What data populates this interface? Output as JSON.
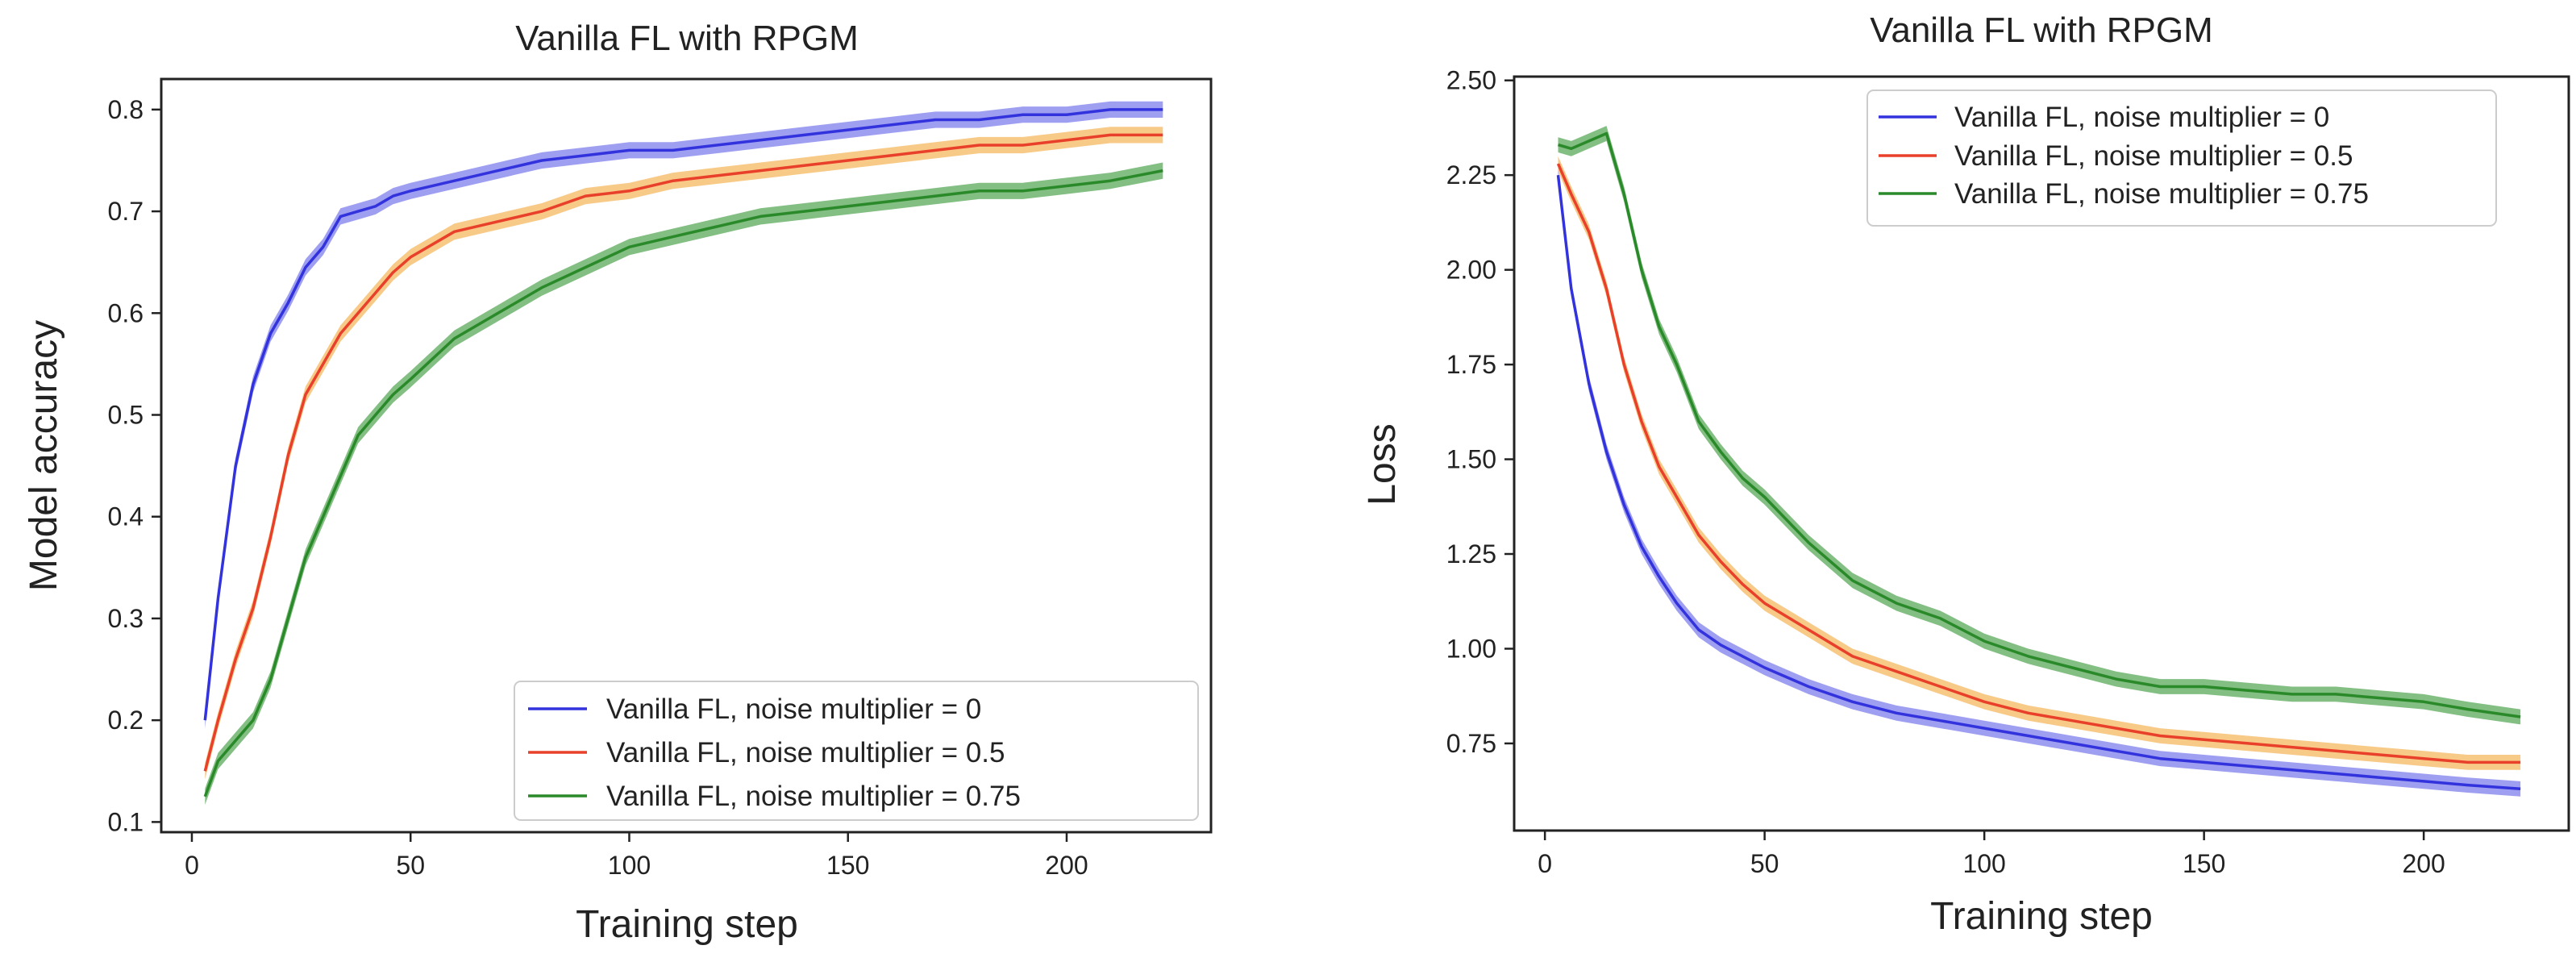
{
  "chart_data": [
    {
      "type": "line",
      "title": "Vanilla FL with RPGM",
      "xlabel": "Training step",
      "ylabel": "Model accuracy",
      "xlim": [
        -7,
        233
      ],
      "ylim": [
        0.09,
        0.83
      ],
      "xticks": [
        0,
        50,
        100,
        150,
        200
      ],
      "yticks": [
        0.1,
        0.2,
        0.3,
        0.4,
        0.5,
        0.6,
        0.7,
        0.8
      ],
      "ytick_labels": [
        "0.1",
        "0.2",
        "0.3",
        "0.4",
        "0.5",
        "0.6",
        "0.7",
        "0.8"
      ],
      "legend_position": "lower-right",
      "band_width": 0.008,
      "series": [
        {
          "name": "Vanilla FL, noise multiplier = 0",
          "color": "#3333dd",
          "band_color": "#7f7fee",
          "x": [
            3,
            6,
            10,
            14,
            18,
            22,
            26,
            30,
            34,
            38,
            42,
            46,
            50,
            60,
            70,
            80,
            90,
            100,
            110,
            120,
            130,
            140,
            150,
            160,
            170,
            180,
            190,
            200,
            210,
            222
          ],
          "y": [
            0.2,
            0.32,
            0.45,
            0.53,
            0.58,
            0.61,
            0.645,
            0.665,
            0.695,
            0.7,
            0.705,
            0.715,
            0.72,
            0.73,
            0.74,
            0.75,
            0.755,
            0.76,
            0.76,
            0.765,
            0.77,
            0.775,
            0.78,
            0.785,
            0.79,
            0.79,
            0.795,
            0.795,
            0.8,
            0.8
          ]
        },
        {
          "name": "Vanilla FL, noise multiplier = 0.5",
          "color": "#e8402a",
          "band_color": "#f5b860",
          "x": [
            3,
            6,
            10,
            14,
            18,
            22,
            26,
            30,
            34,
            38,
            42,
            46,
            50,
            60,
            70,
            80,
            90,
            100,
            110,
            120,
            130,
            140,
            150,
            160,
            170,
            180,
            190,
            200,
            210,
            222
          ],
          "y": [
            0.15,
            0.2,
            0.26,
            0.31,
            0.38,
            0.46,
            0.52,
            0.55,
            0.58,
            0.6,
            0.62,
            0.64,
            0.655,
            0.68,
            0.69,
            0.7,
            0.715,
            0.72,
            0.73,
            0.735,
            0.74,
            0.745,
            0.75,
            0.755,
            0.76,
            0.765,
            0.765,
            0.77,
            0.775,
            0.775
          ]
        },
        {
          "name": "Vanilla FL, noise multiplier = 0.75",
          "color": "#2a8a2a",
          "band_color": "#5aa85a",
          "x": [
            3,
            6,
            10,
            14,
            18,
            22,
            26,
            30,
            34,
            38,
            42,
            46,
            50,
            60,
            70,
            80,
            90,
            100,
            110,
            120,
            130,
            140,
            150,
            160,
            170,
            180,
            190,
            200,
            210,
            222
          ],
          "y": [
            0.125,
            0.16,
            0.18,
            0.2,
            0.24,
            0.3,
            0.36,
            0.4,
            0.44,
            0.48,
            0.5,
            0.52,
            0.535,
            0.575,
            0.6,
            0.625,
            0.645,
            0.665,
            0.675,
            0.685,
            0.695,
            0.7,
            0.705,
            0.71,
            0.715,
            0.72,
            0.72,
            0.725,
            0.73,
            0.74
          ]
        }
      ]
    },
    {
      "type": "line",
      "title": "Vanilla FL with RPGM",
      "xlabel": "Training step",
      "ylabel": "Loss",
      "xlim": [
        -7,
        233
      ],
      "ylim": [
        0.52,
        2.51
      ],
      "xticks": [
        0,
        50,
        100,
        150,
        200
      ],
      "yticks": [
        0.75,
        1.0,
        1.25,
        1.5,
        1.75,
        2.0,
        2.25,
        2.5
      ],
      "ytick_labels": [
        "0.75",
        "1.00",
        "1.25",
        "1.50",
        "1.75",
        "2.00",
        "2.25",
        "2.50"
      ],
      "legend_position": "upper-right",
      "band_width": 0.02,
      "series": [
        {
          "name": "Vanilla FL, noise multiplier = 0",
          "color": "#3333dd",
          "band_color": "#7f7fee",
          "x": [
            3,
            6,
            10,
            14,
            18,
            22,
            26,
            30,
            35,
            40,
            45,
            50,
            60,
            70,
            80,
            90,
            100,
            110,
            120,
            130,
            140,
            150,
            160,
            170,
            180,
            190,
            200,
            210,
            222
          ],
          "y": [
            2.25,
            1.95,
            1.7,
            1.52,
            1.38,
            1.27,
            1.19,
            1.12,
            1.05,
            1.01,
            0.98,
            0.95,
            0.9,
            0.86,
            0.83,
            0.81,
            0.79,
            0.77,
            0.75,
            0.73,
            0.71,
            0.7,
            0.69,
            0.68,
            0.67,
            0.66,
            0.65,
            0.64,
            0.63
          ]
        },
        {
          "name": "Vanilla FL, noise multiplier = 0.5",
          "color": "#e8402a",
          "band_color": "#f5b860",
          "x": [
            3,
            6,
            10,
            14,
            18,
            22,
            26,
            30,
            35,
            40,
            45,
            50,
            60,
            70,
            80,
            90,
            100,
            110,
            120,
            130,
            140,
            150,
            160,
            170,
            180,
            190,
            200,
            210,
            222
          ],
          "y": [
            2.28,
            2.2,
            2.1,
            1.95,
            1.75,
            1.6,
            1.48,
            1.4,
            1.3,
            1.23,
            1.17,
            1.12,
            1.05,
            0.98,
            0.94,
            0.9,
            0.86,
            0.83,
            0.81,
            0.79,
            0.77,
            0.76,
            0.75,
            0.74,
            0.73,
            0.72,
            0.71,
            0.7,
            0.7
          ]
        },
        {
          "name": "Vanilla FL, noise multiplier = 0.75",
          "color": "#2a8a2a",
          "band_color": "#5aa85a",
          "x": [
            3,
            6,
            10,
            14,
            18,
            22,
            26,
            30,
            35,
            40,
            45,
            50,
            60,
            70,
            80,
            90,
            100,
            110,
            120,
            130,
            140,
            150,
            160,
            170,
            180,
            190,
            200,
            210,
            222
          ],
          "y": [
            2.33,
            2.32,
            2.34,
            2.36,
            2.2,
            2.0,
            1.85,
            1.75,
            1.6,
            1.52,
            1.45,
            1.4,
            1.28,
            1.18,
            1.12,
            1.08,
            1.02,
            0.98,
            0.95,
            0.92,
            0.9,
            0.9,
            0.89,
            0.88,
            0.88,
            0.87,
            0.86,
            0.84,
            0.82
          ]
        }
      ]
    }
  ]
}
